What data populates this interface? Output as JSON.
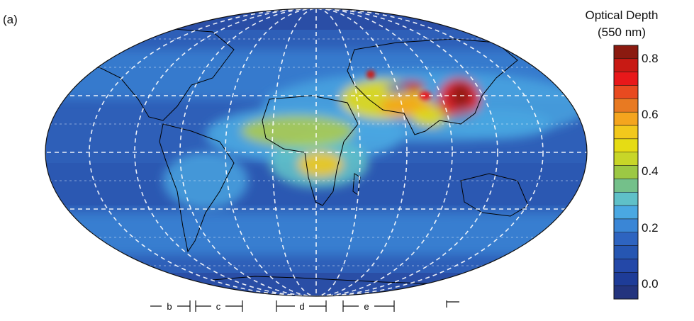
{
  "panel_label": "(a)",
  "colorbar": {
    "title_line1": "Optical Depth",
    "title_line2": "(550 nm)",
    "ticks": [
      "0.8",
      "0.6",
      "0.4",
      "0.2",
      "0.0"
    ],
    "tick_values": [
      0.8,
      0.6,
      0.4,
      0.2,
      0.0
    ],
    "range": [
      -0.05,
      0.85
    ],
    "colors_top_to_bottom": [
      "#8b1a10",
      "#c81a14",
      "#e8181a",
      "#e84a20",
      "#e87a22",
      "#f4a51e",
      "#f2c81c",
      "#e6dc14",
      "#c8d628",
      "#9cc844",
      "#74c08a",
      "#5fc0c8",
      "#4aa8e2",
      "#3a86d6",
      "#2e64c0",
      "#2656b2",
      "#2448a8",
      "#1e3c98",
      "#23347e"
    ]
  },
  "segments": [
    {
      "label": "b"
    },
    {
      "label": "c"
    },
    {
      "label": "d"
    },
    {
      "label": "e"
    }
  ],
  "colors": {
    "ocean_background": "#2e5fb8",
    "land_outline": "#000000",
    "graticule": "#ffffff"
  }
}
